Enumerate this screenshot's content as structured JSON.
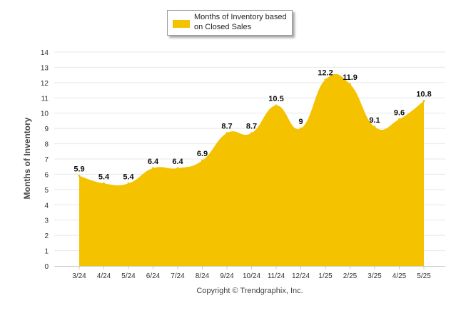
{
  "chart_data": {
    "type": "area",
    "categories": [
      "3/24",
      "4/24",
      "5/24",
      "6/24",
      "7/24",
      "8/24",
      "9/24",
      "10/24",
      "11/24",
      "12/24",
      "1/25",
      "2/25",
      "3/25",
      "4/25",
      "5/25"
    ],
    "series": [
      {
        "name": "Months of Inventory based on Closed Sales",
        "values": [
          5.9,
          5.4,
          5.4,
          6.4,
          6.4,
          6.9,
          8.7,
          8.7,
          10.5,
          9,
          12.2,
          11.9,
          9.1,
          9.6,
          10.8
        ],
        "color": "#f5c200"
      }
    ],
    "data_labels": [
      "5.9",
      "5.4",
      "5.4",
      "6.4",
      "6.4",
      "6.9",
      "8.7",
      "8.7",
      "10.5",
      "9",
      "12.2",
      "11.9",
      "9.1",
      "9.6",
      "10.8"
    ],
    "ylabel": "Months of Inventory",
    "xlabel": "",
    "yticks": [
      "0",
      "1",
      "2",
      "3",
      "4",
      "5",
      "6",
      "7",
      "8",
      "9",
      "10",
      "11",
      "12",
      "13",
      "14"
    ],
    "ylim": [
      0,
      14
    ],
    "grid": true,
    "legend_position": "top-center"
  },
  "legend": {
    "label": "Months of Inventory based on Closed Sales",
    "color": "#f5c200"
  },
  "footer": {
    "copyright": "Copyright © Trendgraphix, Inc."
  },
  "colors": {
    "area_fill": "#f5c200",
    "gridline": "#e8e8e8",
    "axis_text": "#333333"
  }
}
